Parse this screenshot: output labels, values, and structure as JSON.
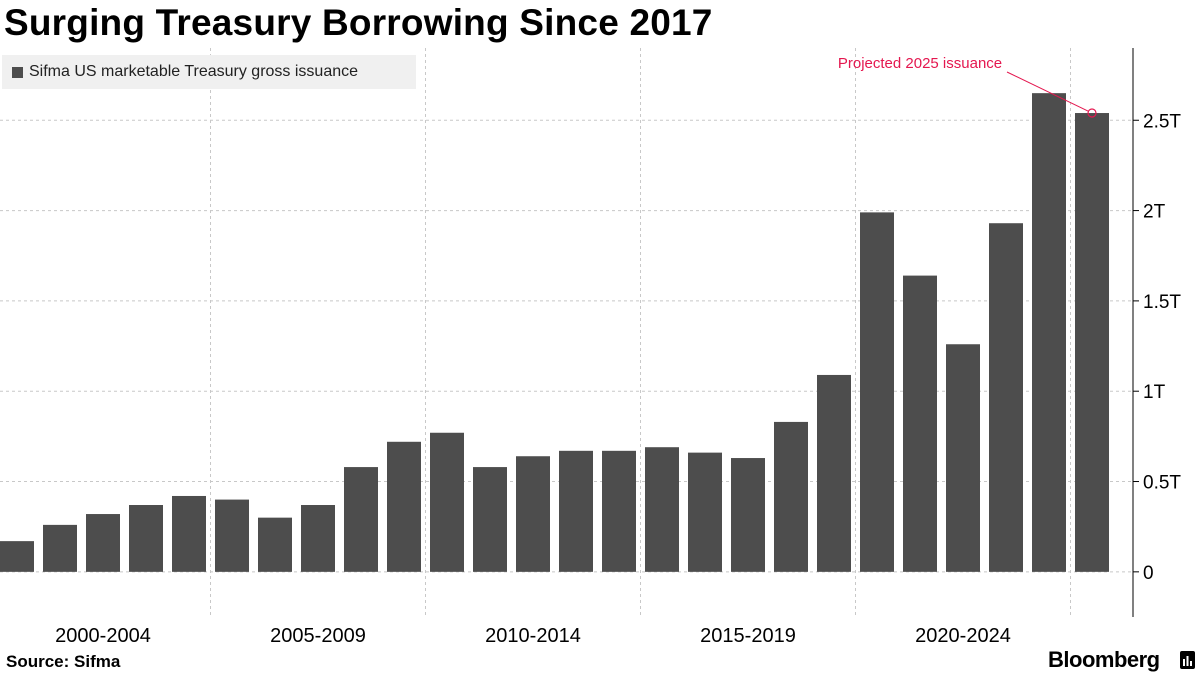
{
  "header": {
    "title": "Surging Treasury Borrowing Since 2017"
  },
  "footer": {
    "source": "Source: Sifma",
    "brand": "Bloomberg"
  },
  "colors": {
    "bar": "#4d4d4d",
    "annotation": "#e4174f",
    "grid": "#c8c8c8",
    "legend_bg": "#f0f0f0"
  },
  "chart_data": {
    "type": "bar",
    "title": "Surging Treasury Borrowing Since 2017",
    "x": [
      2000,
      2001,
      2002,
      2003,
      2004,
      2005,
      2006,
      2007,
      2008,
      2009,
      2010,
      2011,
      2012,
      2013,
      2014,
      2015,
      2016,
      2017,
      2018,
      2019,
      2020,
      2021,
      2022,
      2023,
      2024,
      2025
    ],
    "x_tick_labels": [
      "2000-2004",
      "2005-2009",
      "2010-2014",
      "2015-2019",
      "2020-2024"
    ],
    "series": [
      {
        "name": "Sifma US marketable Treasury gross issuance",
        "values": [
          0.17,
          0.26,
          0.32,
          0.37,
          0.42,
          0.4,
          0.3,
          0.37,
          0.58,
          0.72,
          0.77,
          0.58,
          0.64,
          0.67,
          0.67,
          0.69,
          0.66,
          0.63,
          0.83,
          1.09,
          1.99,
          1.64,
          1.26,
          1.93,
          2.65,
          2.54
        ]
      }
    ],
    "y_unit": "T",
    "ylim": [
      -0.25,
      2.9
    ],
    "y_ticks": [
      0,
      0.5,
      1,
      1.5,
      2,
      2.5
    ],
    "y_tick_labels": [
      "0",
      "0.5T",
      "1T",
      "1.5T",
      "2T",
      "2.5T"
    ],
    "y_axis_position": "right",
    "grid": true,
    "legend": "top-left",
    "annotation": {
      "text": "Projected 2025 issuance",
      "x": 2025,
      "y": 2.54
    }
  }
}
